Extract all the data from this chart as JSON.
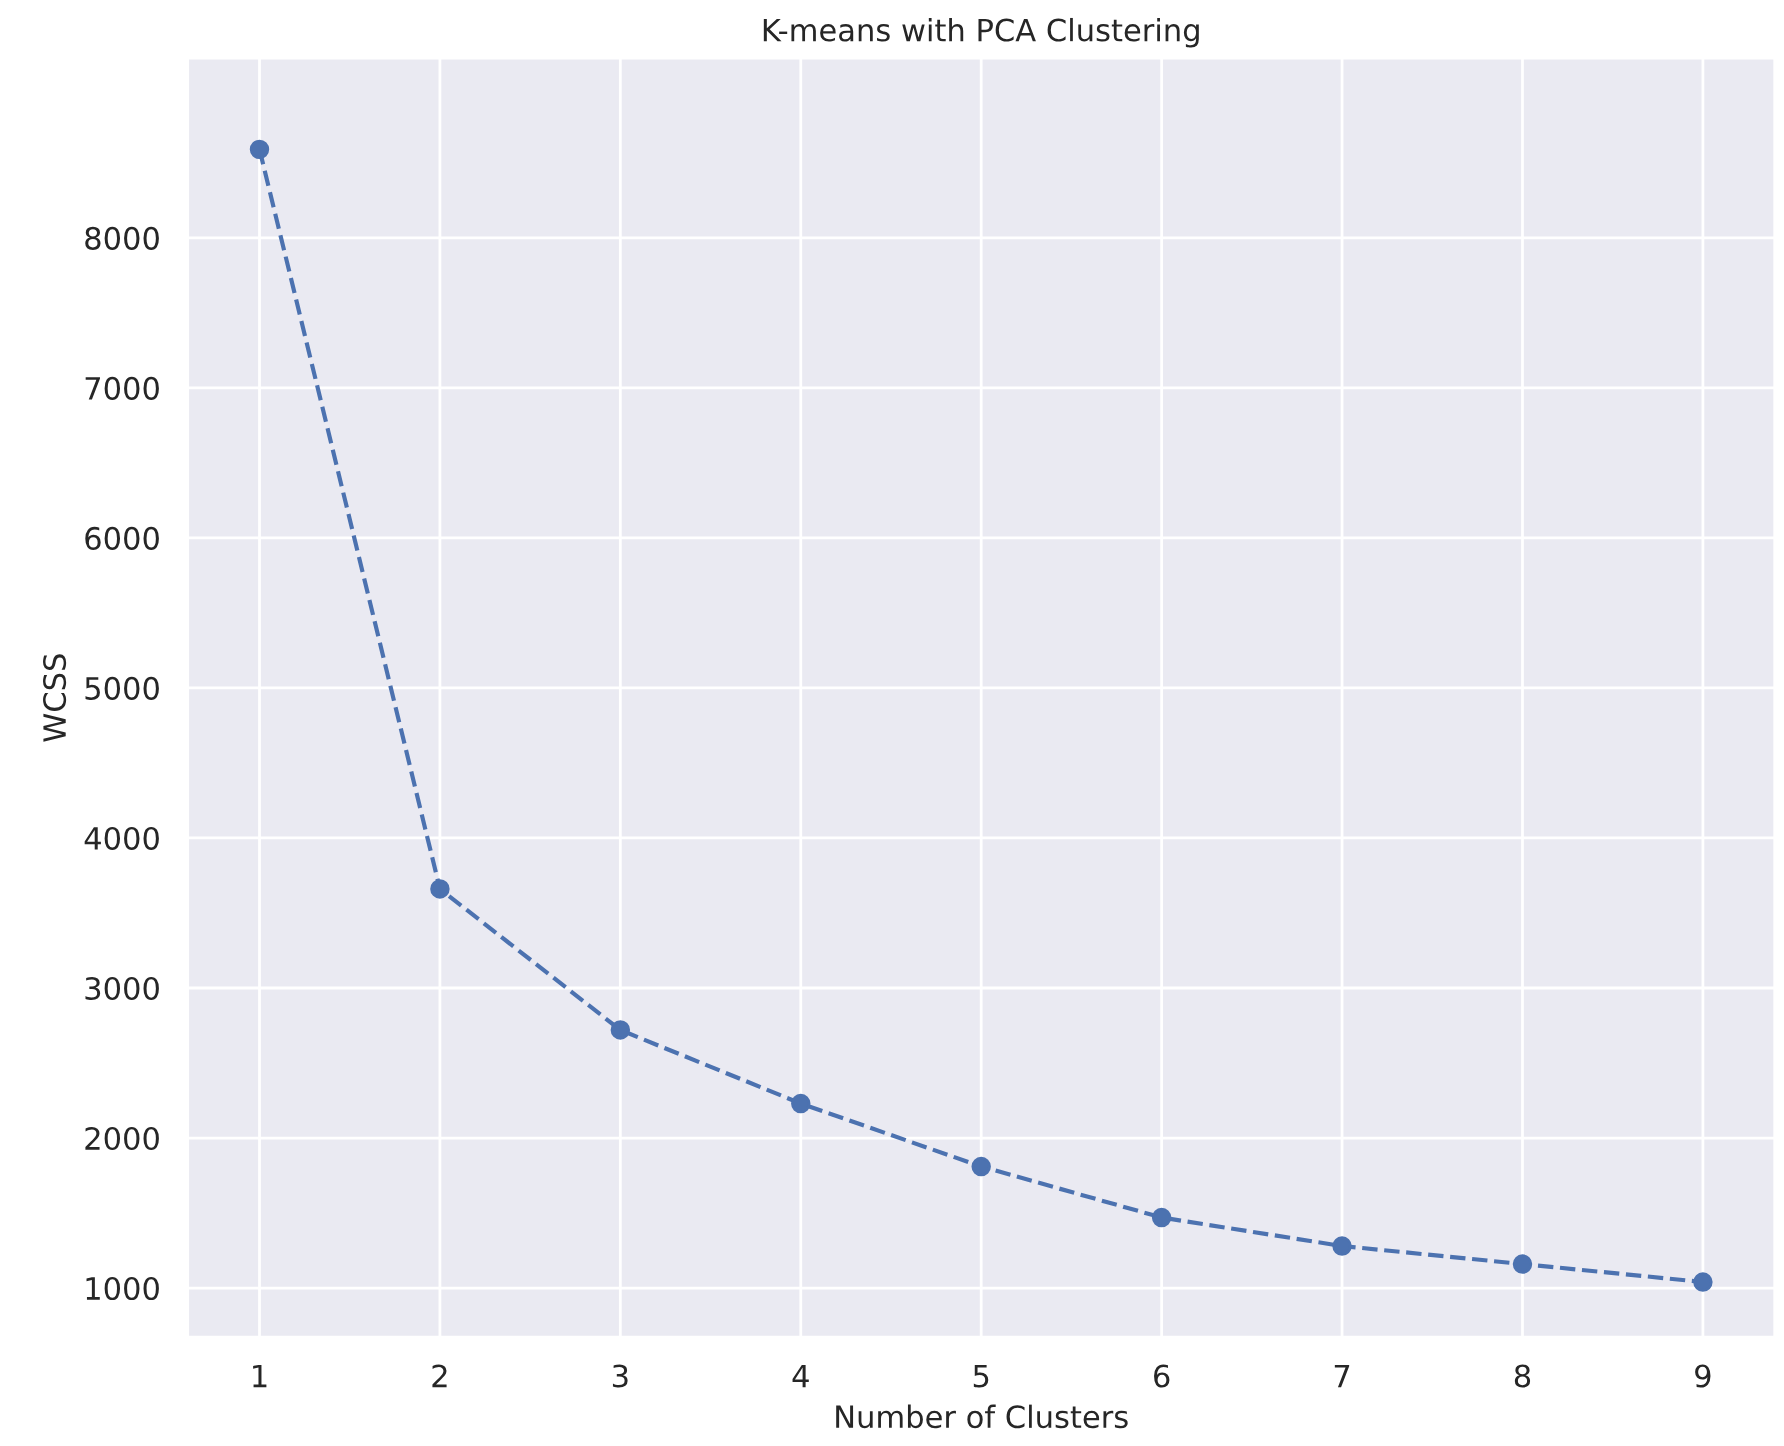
{
  "chart_data": {
    "type": "line",
    "title": "K-means with PCA Clustering",
    "xlabel": "Number of Clusters",
    "ylabel": "WCSS",
    "x": [
      1,
      2,
      3,
      4,
      5,
      6,
      7,
      8,
      9
    ],
    "series": [
      {
        "color": "#4c72b0",
        "values": [
          8590,
          3660,
          2720,
          2230,
          1810,
          1470,
          1280,
          1160,
          1040
        ]
      }
    ],
    "marker": "circle",
    "line_style": "dashed",
    "grid": true,
    "legend": false,
    "xlim": [
      0.6,
      9.4
    ],
    "ylim": [
      670,
      9200
    ],
    "xticks": [
      1,
      2,
      3,
      4,
      5,
      6,
      7,
      8,
      9
    ],
    "yticks": [
      1000,
      2000,
      3000,
      4000,
      5000,
      6000,
      7000,
      8000
    ]
  }
}
